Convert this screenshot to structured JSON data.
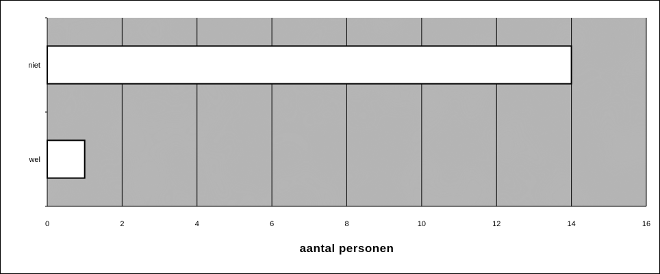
{
  "chart_data": {
    "type": "bar",
    "orientation": "horizontal",
    "categories": [
      "niet",
      "wel"
    ],
    "values": [
      14,
      1
    ],
    "xlabel": "aantal personen",
    "ylabel": "",
    "xlim": [
      0,
      16
    ],
    "xticks": [
      0,
      2,
      4,
      6,
      8,
      10,
      12,
      14,
      16
    ],
    "grid": true,
    "legend": "none",
    "colors": {
      "bar_fill": "#ffffff",
      "bar_stroke": "#000000",
      "plot_background": "#b4b4b4",
      "gridline": "#000000"
    }
  }
}
